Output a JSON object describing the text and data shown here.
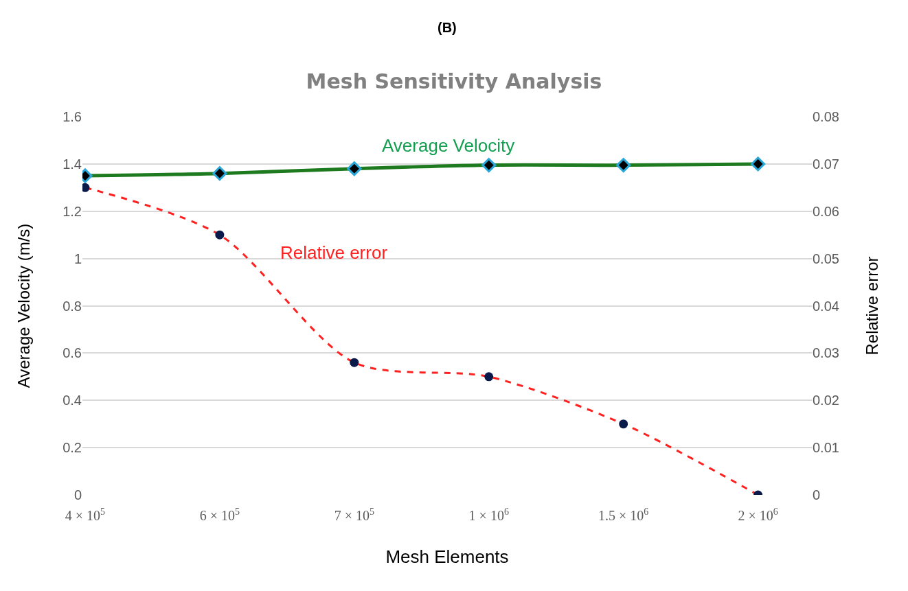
{
  "chart_data": {
    "type": "line",
    "title": "Mesh Sensitivity Analysis",
    "annotations": [
      "(B)"
    ],
    "xlabel": "Mesh Elements",
    "ylabel": "Average Velocity (m/s)",
    "y2label": "Relative error",
    "categories": [
      "4 × 10$^{5}$",
      "6 × 10$^{5}$",
      "7 × 10$^{5}$",
      "1 × 10$^{6}$",
      "1.5 × 10$^{6}$",
      "2 × 10$^{6}$"
    ],
    "series": [
      {
        "name": "Average Velocity",
        "color": "#1e7a1e",
        "values": [
          1.35,
          1.36,
          1.38,
          1.395,
          1.395,
          1.4
        ],
        "marker": "diamond",
        "line_style": "solid"
      },
      {
        "name": "Relative error",
        "color": "#ff2020",
        "values": [
          0.065,
          0.055,
          0.028,
          0.025,
          0.015,
          0
        ],
        "axis": "y2",
        "marker": "circle",
        "line_style": "dashed"
      }
    ],
    "ylim": [
      0,
      1.6
    ],
    "yticks": [
      0,
      0.2,
      0.4,
      0.6,
      0.8,
      1,
      1.2,
      1.4,
      1.6
    ],
    "y2lim": [
      0,
      0.08
    ],
    "y2ticks": [
      0,
      0.01,
      0.02,
      0.03,
      0.04,
      0.05,
      0.06,
      0.07,
      0.08
    ],
    "grid": "y",
    "legend": false
  }
}
